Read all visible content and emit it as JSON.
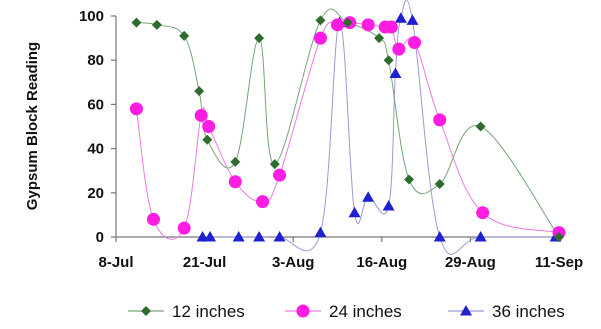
{
  "chart_data": {
    "type": "line",
    "title": "",
    "xlabel": "",
    "ylabel": "Gypsum Block Reading",
    "ylim": [
      0,
      100
    ],
    "y_ticks": [
      "0",
      "20",
      "40",
      "60",
      "80",
      "100"
    ],
    "x_ticks": [
      {
        "day": 0,
        "label": "8-Jul"
      },
      {
        "day": 13,
        "label": "21-Jul"
      },
      {
        "day": 26,
        "label": "3-Aug"
      },
      {
        "day": 39,
        "label": "16-Aug"
      },
      {
        "day": 52,
        "label": "29-Aug"
      },
      {
        "day": 65,
        "label": "11-Sep"
      }
    ],
    "x_unit": "date, July 8 onward",
    "legend_position": "bottom",
    "grid": false,
    "series": [
      {
        "name": "12 inches",
        "color": "#2f6b2f",
        "line_color": "#79a479",
        "marker": "diamond",
        "points": [
          {
            "day": 3,
            "y": 97
          },
          {
            "day": 6,
            "y": 96
          },
          {
            "day": 10,
            "y": 91
          },
          {
            "day": 12.2,
            "y": 66
          },
          {
            "day": 13.4,
            "y": 44
          },
          {
            "day": 17.5,
            "y": 34
          },
          {
            "day": 21,
            "y": 90
          },
          {
            "day": 23.3,
            "y": 33
          },
          {
            "day": 30,
            "y": 98
          },
          {
            "day": 34,
            "y": 97
          },
          {
            "day": 38.6,
            "y": 90
          },
          {
            "day": 40,
            "y": 80
          },
          {
            "day": 43,
            "y": 26
          },
          {
            "day": 47.5,
            "y": 24
          },
          {
            "day": 53.5,
            "y": 50
          },
          {
            "day": 65,
            "y": 0
          }
        ]
      },
      {
        "name": "24 inches",
        "color": "#ff1de2",
        "line_color": "#f07ae2",
        "marker": "circle",
        "points": [
          {
            "day": 3,
            "y": 58
          },
          {
            "day": 5.5,
            "y": 8
          },
          {
            "day": 10,
            "y": 4
          },
          {
            "day": 12.5,
            "y": 55
          },
          {
            "day": 13.6,
            "y": 50
          },
          {
            "day": 17.5,
            "y": 25
          },
          {
            "day": 21.5,
            "y": 16
          },
          {
            "day": 24,
            "y": 28
          },
          {
            "day": 30,
            "y": 90
          },
          {
            "day": 32.5,
            "y": 96
          },
          {
            "day": 34.3,
            "y": 97
          },
          {
            "day": 37,
            "y": 96
          },
          {
            "day": 39.5,
            "y": 95
          },
          {
            "day": 40.4,
            "y": 95
          },
          {
            "day": 41.5,
            "y": 85
          },
          {
            "day": 43.8,
            "y": 88
          },
          {
            "day": 47.5,
            "y": 53
          },
          {
            "day": 53.8,
            "y": 11
          },
          {
            "day": 65,
            "y": 2
          }
        ]
      },
      {
        "name": "36 inches",
        "color": "#2020d0",
        "line_color": "#9a9ad8",
        "marker": "triangle",
        "points": [
          {
            "day": 12.7,
            "y": 0
          },
          {
            "day": 13.8,
            "y": 0
          },
          {
            "day": 18,
            "y": 0
          },
          {
            "day": 21,
            "y": 0
          },
          {
            "day": 24,
            "y": 0
          },
          {
            "day": 30,
            "y": 2
          },
          {
            "day": 32.8,
            "y": 97
          },
          {
            "day": 35,
            "y": 11
          },
          {
            "day": 37,
            "y": 18
          },
          {
            "day": 40,
            "y": 14
          },
          {
            "day": 41,
            "y": 74
          },
          {
            "day": 41.8,
            "y": 99
          },
          {
            "day": 43.5,
            "y": 98
          },
          {
            "day": 47.5,
            "y": 0
          },
          {
            "day": 53.5,
            "y": 0
          },
          {
            "day": 64.5,
            "y": 0
          }
        ]
      }
    ]
  }
}
